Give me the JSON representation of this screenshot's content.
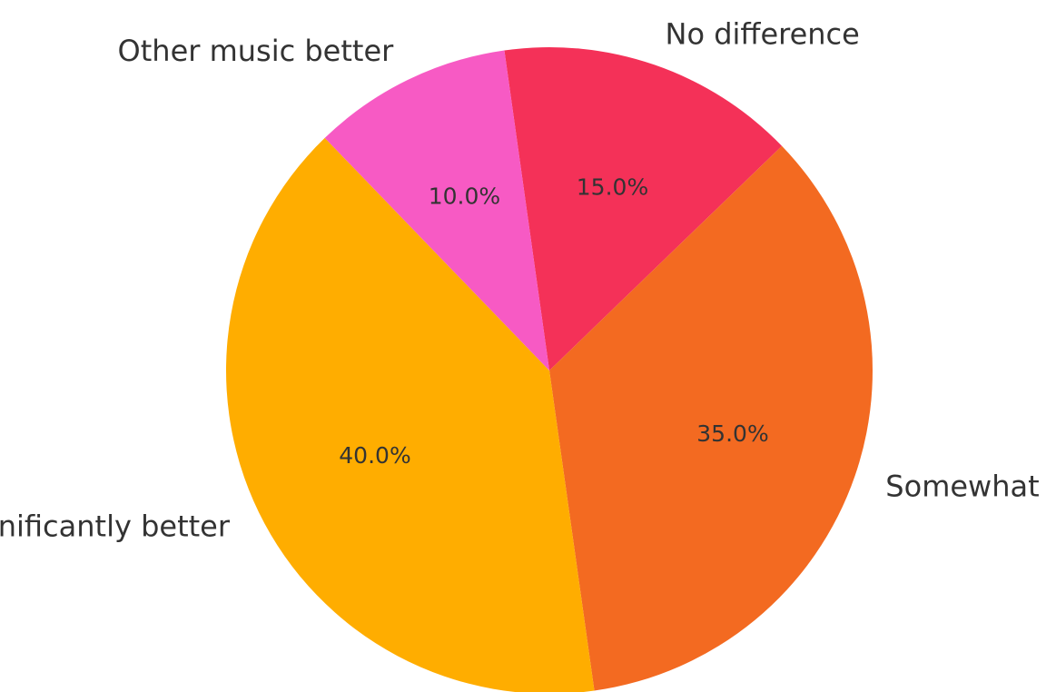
{
  "chart_data": {
    "type": "pie",
    "title": "",
    "start_angle_deg": 98,
    "direction": "clockwise",
    "slices": [
      {
        "label": "No difference",
        "value": 15.0,
        "pct_label": "15.0%",
        "color": "#F43158"
      },
      {
        "label": "Somewhat",
        "value": 35.0,
        "pct_label": "35.0%",
        "color": "#F36A21"
      },
      {
        "label": "Significantly better",
        "value": 40.0,
        "pct_label": "40.0%",
        "color": "#FFAD00"
      },
      {
        "label": "Other music better",
        "value": 10.0,
        "pct_label": "10.0%",
        "color": "#F75AC4"
      }
    ],
    "legend": "none"
  }
}
